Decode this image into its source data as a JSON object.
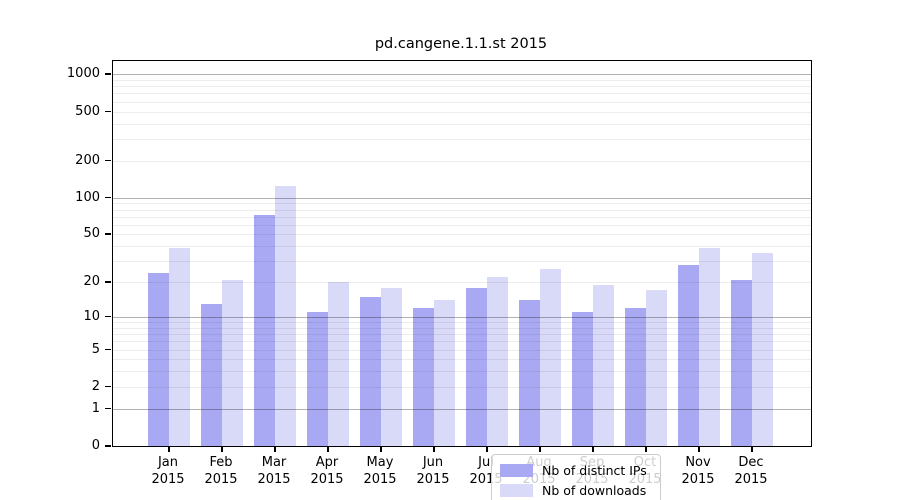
{
  "title": "pd.cangene.1.1.st 2015",
  "legend": {
    "items": [
      {
        "label": "Nb of distinct IPs",
        "color": "#a9a9f3"
      },
      {
        "label": "Nb of downloads",
        "color": "#d9d9f8"
      }
    ]
  },
  "chart_data": {
    "type": "bar",
    "title": "pd.cangene.1.1.st 2015",
    "year": "2015",
    "months": [
      "Jan",
      "Feb",
      "Mar",
      "Apr",
      "May",
      "Jun",
      "Jul",
      "Aug",
      "Sep",
      "Oct",
      "Nov",
      "Dec"
    ],
    "categories": [
      "Jan 2015",
      "Feb 2015",
      "Mar 2015",
      "Apr 2015",
      "May 2015",
      "Jun 2015",
      "Jul 2015",
      "Aug 2015",
      "Sep 2015",
      "Oct 2015",
      "Nov 2015",
      "Dec 2015"
    ],
    "series": [
      {
        "name": "Nb of distinct IPs",
        "color": "#a9a9f3",
        "values": [
          24,
          13,
          72,
          11,
          15,
          12,
          18,
          14,
          11,
          12,
          28,
          21
        ]
      },
      {
        "name": "Nb of downloads",
        "color": "#d9d9f8",
        "values": [
          39,
          21,
          125,
          20,
          18,
          14,
          22,
          26,
          19,
          17,
          39,
          35
        ]
      }
    ],
    "yscale": "log1p",
    "ylim": [
      0,
      1280
    ],
    "ytick_values": [
      0,
      1,
      2,
      5,
      10,
      20,
      50,
      100,
      200,
      500,
      1000
    ],
    "ytick_labels": [
      "0",
      "1",
      "2",
      "5",
      "10",
      "20",
      "50",
      "100",
      "200",
      "500",
      "1000"
    ],
    "major_gridlines": [
      1,
      10,
      100,
      1000
    ],
    "minor_gridlines": [
      2,
      3,
      4,
      5,
      6,
      7,
      8,
      9,
      20,
      30,
      40,
      50,
      60,
      70,
      80,
      90,
      200,
      300,
      400,
      500,
      600,
      700,
      800,
      900
    ],
    "grid": true,
    "legend_position": "lower center"
  }
}
